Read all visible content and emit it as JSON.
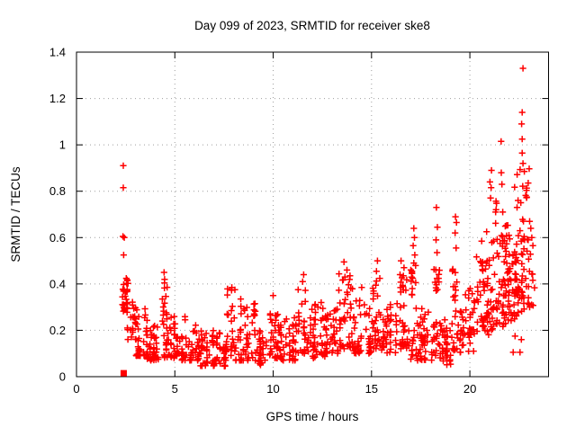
{
  "chart_data": {
    "type": "scatter",
    "title": "Day 099 of 2023, SRMTID for receiver ske8",
    "xlabel": "GPS time / hours",
    "ylabel": "SRMTID / TECUs",
    "xlim": [
      0,
      24
    ],
    "ylim": [
      0,
      1.4
    ],
    "xticks": [
      0,
      5,
      10,
      15,
      20
    ],
    "xtick_labels": [
      "0",
      "5",
      "10",
      "15",
      "20"
    ],
    "yticks": [
      0,
      0.2,
      0.4,
      0.6,
      0.8,
      1.0,
      1.2,
      1.4
    ],
    "ytick_labels": [
      "0",
      "0.2",
      "0.4",
      "0.6",
      "0.8",
      "1",
      "1.2",
      "1.4"
    ],
    "grid": "dotted",
    "grid_color": "#9e9e9e",
    "legend": "none",
    "marker": "plus",
    "marker_color": "#ff0000",
    "square_marker_point": [
      2.4,
      0.015
    ],
    "seed": 2023099,
    "notable_points": [
      [
        2.38,
        0.91
      ],
      [
        2.38,
        0.815
      ],
      [
        2.36,
        0.605
      ],
      [
        2.43,
        0.6
      ],
      [
        2.4,
        0.525
      ],
      [
        4.45,
        0.45
      ],
      [
        4.48,
        0.42
      ],
      [
        7.9,
        0.385
      ],
      [
        8.35,
        0.335
      ],
      [
        10.0,
        0.35
      ],
      [
        11.55,
        0.44
      ],
      [
        11.5,
        0.41
      ],
      [
        13.6,
        0.495
      ],
      [
        13.75,
        0.46
      ],
      [
        13.65,
        0.43
      ],
      [
        14.5,
        0.385
      ],
      [
        15.3,
        0.5
      ],
      [
        15.25,
        0.455
      ],
      [
        16.5,
        0.5
      ],
      [
        16.65,
        0.47
      ],
      [
        16.45,
        0.44
      ],
      [
        17.15,
        0.64
      ],
      [
        17.18,
        0.6
      ],
      [
        17.12,
        0.565
      ],
      [
        17.2,
        0.525
      ],
      [
        17.15,
        0.49
      ],
      [
        18.3,
        0.73
      ],
      [
        18.35,
        0.645
      ],
      [
        18.28,
        0.59
      ],
      [
        18.33,
        0.535
      ],
      [
        19.27,
        0.69
      ],
      [
        19.32,
        0.665
      ],
      [
        19.25,
        0.62
      ],
      [
        19.3,
        0.555
      ],
      [
        20.85,
        0.625
      ],
      [
        20.6,
        0.585
      ],
      [
        21.1,
        0.89
      ],
      [
        21.02,
        0.84
      ],
      [
        21.08,
        0.815
      ],
      [
        21.59,
        1.015
      ],
      [
        21.6,
        0.88
      ],
      [
        21.63,
        0.83
      ],
      [
        21.67,
        0.71
      ],
      [
        22.4,
        0.73
      ],
      [
        22.45,
        0.76
      ],
      [
        22.7,
        1.33
      ],
      [
        22.66,
        1.14
      ],
      [
        22.63,
        1.09
      ],
      [
        22.66,
        1.025
      ],
      [
        22.66,
        0.965
      ],
      [
        22.7,
        0.92
      ],
      [
        22.77,
        0.885
      ],
      [
        22.2,
        0.105
      ],
      [
        22.55,
        0.105
      ],
      [
        22.62,
        0.16
      ],
      [
        22.3,
        0.175
      ],
      [
        23.1,
        0.64
      ],
      [
        23.15,
        0.6
      ]
    ],
    "dense_bands": [
      [
        2.33,
        2.62,
        26,
        0.27,
        0.465,
        0.9
      ],
      [
        2.55,
        3.05,
        22,
        0.16,
        0.34,
        1.3
      ],
      [
        3.0,
        3.6,
        38,
        0.09,
        0.3,
        1.7
      ],
      [
        3.55,
        4.35,
        42,
        0.07,
        0.22,
        1.5
      ],
      [
        4.35,
        4.62,
        16,
        0.15,
        0.445,
        1.0
      ],
      [
        4.35,
        4.7,
        10,
        0.08,
        0.16,
        1.2
      ],
      [
        4.65,
        5.35,
        32,
        0.08,
        0.27,
        1.6
      ],
      [
        5.3,
        6.3,
        48,
        0.07,
        0.26,
        1.7
      ],
      [
        6.3,
        7.6,
        66,
        0.045,
        0.2,
        1.5
      ],
      [
        7.55,
        8.1,
        26,
        0.08,
        0.38,
        1.8
      ],
      [
        8.05,
        9.2,
        52,
        0.07,
        0.32,
        1.9
      ],
      [
        9.2,
        9.75,
        28,
        0.05,
        0.2,
        1.4
      ],
      [
        9.75,
        10.3,
        32,
        0.08,
        0.35,
        1.7
      ],
      [
        10.3,
        11.2,
        48,
        0.07,
        0.26,
        1.5
      ],
      [
        11.2,
        11.8,
        32,
        0.1,
        0.38,
        1.5
      ],
      [
        11.8,
        12.6,
        42,
        0.08,
        0.33,
        1.6
      ],
      [
        12.6,
        13.3,
        38,
        0.1,
        0.3,
        1.5
      ],
      [
        13.3,
        14.1,
        44,
        0.12,
        0.45,
        1.6
      ],
      [
        14.1,
        15.0,
        44,
        0.1,
        0.33,
        1.6
      ],
      [
        15.0,
        15.5,
        28,
        0.12,
        0.44,
        1.5
      ],
      [
        15.5,
        16.3,
        42,
        0.1,
        0.32,
        1.6
      ],
      [
        16.3,
        16.85,
        32,
        0.12,
        0.46,
        1.5
      ],
      [
        16.85,
        18.1,
        58,
        0.07,
        0.3,
        1.6
      ],
      [
        17.0,
        17.3,
        12,
        0.33,
        0.48,
        1.0
      ],
      [
        18.15,
        18.5,
        12,
        0.36,
        0.5,
        1.0
      ],
      [
        18.1,
        18.6,
        20,
        0.08,
        0.3,
        1.5
      ],
      [
        18.55,
        19.1,
        30,
        0.05,
        0.25,
        1.4
      ],
      [
        19.1,
        19.5,
        12,
        0.28,
        0.47,
        1.1
      ],
      [
        19.1,
        19.55,
        16,
        0.1,
        0.28,
        1.3
      ],
      [
        19.5,
        20.25,
        36,
        0.1,
        0.38,
        1.4
      ],
      [
        20.2,
        21.0,
        50,
        0.17,
        0.52,
        1.3
      ],
      [
        21.0,
        21.8,
        56,
        0.2,
        0.62,
        1.2
      ],
      [
        21.8,
        22.4,
        52,
        0.24,
        0.66,
        1.2
      ],
      [
        22.35,
        23.05,
        55,
        0.27,
        0.7,
        1.1
      ],
      [
        22.2,
        23.0,
        12,
        0.73,
        0.9,
        1.0
      ],
      [
        21.0,
        21.8,
        6,
        0.66,
        0.78,
        1.0
      ],
      [
        23.0,
        23.3,
        8,
        0.3,
        0.62,
        1.2
      ]
    ]
  }
}
